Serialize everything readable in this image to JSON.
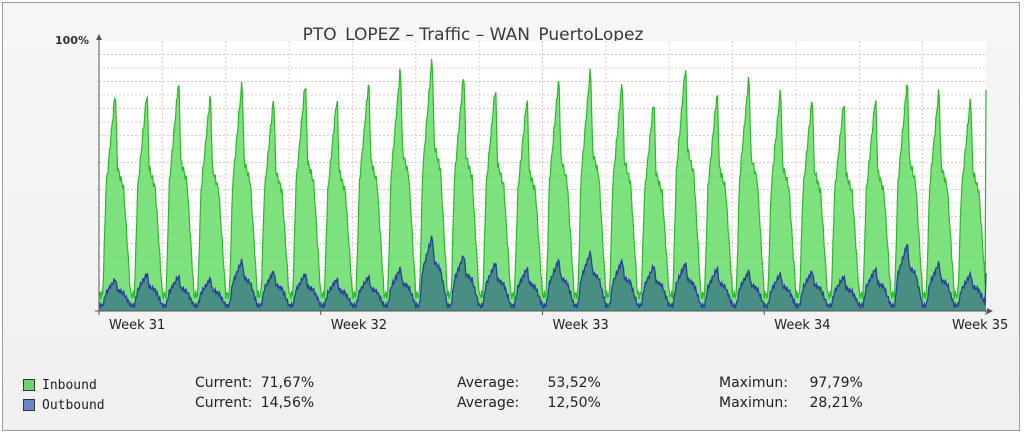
{
  "chart_data": {
    "type": "area",
    "title": "PTO_LOPEZ – Traffic – WAN_PuertoLopez",
    "ylim": [
      0,
      100
    ],
    "ytick_label": "100%",
    "grid": true,
    "xlabels": [
      "Week 31",
      "Week 32",
      "Week 33",
      "Week 34",
      "Week 35"
    ],
    "x": [
      31.0,
      31.143,
      31.286,
      31.429,
      31.571,
      31.714,
      31.857,
      32.0,
      32.143,
      32.286,
      32.429,
      32.571,
      32.714,
      32.857,
      33.0,
      33.143,
      33.286,
      33.429,
      33.571,
      33.714,
      33.857,
      34.0,
      34.143,
      34.286,
      34.429,
      34.571,
      34.714,
      34.857,
      35.0
    ],
    "series": [
      {
        "name": "Inbound",
        "color": "#3ecf3e",
        "daily_peaks": [
          82,
          82,
          86,
          81,
          86,
          80,
          86,
          80,
          86,
          91,
          95,
          89,
          84,
          80,
          87,
          91,
          86,
          79,
          92,
          82,
          88,
          83,
          80,
          79,
          80,
          86,
          83,
          80,
          82
        ]
      },
      {
        "name": "Outbound",
        "color": "#4a6ab5",
        "daily_peaks": [
          12,
          14,
          13,
          12,
          19,
          15,
          14,
          12,
          13,
          16,
          28,
          21,
          18,
          16,
          19,
          22,
          19,
          17,
          18,
          16,
          15,
          14,
          15,
          13,
          16,
          25,
          18,
          14,
          14
        ]
      }
    ]
  },
  "legend": {
    "inbound": {
      "label": "Inbound",
      "current_label": "Current:",
      "current": "71,67%",
      "average_label": "Average:",
      "average": "53,52%",
      "maximum_label": "Maximun:",
      "maximum": "97,79%"
    },
    "outbound": {
      "label": "Outbound",
      "current_label": "Current:",
      "current": "14,56%",
      "average_label": "Average:",
      "average": "12,50%",
      "maximum_label": "Maximun:",
      "maximum": "28,21%"
    }
  }
}
